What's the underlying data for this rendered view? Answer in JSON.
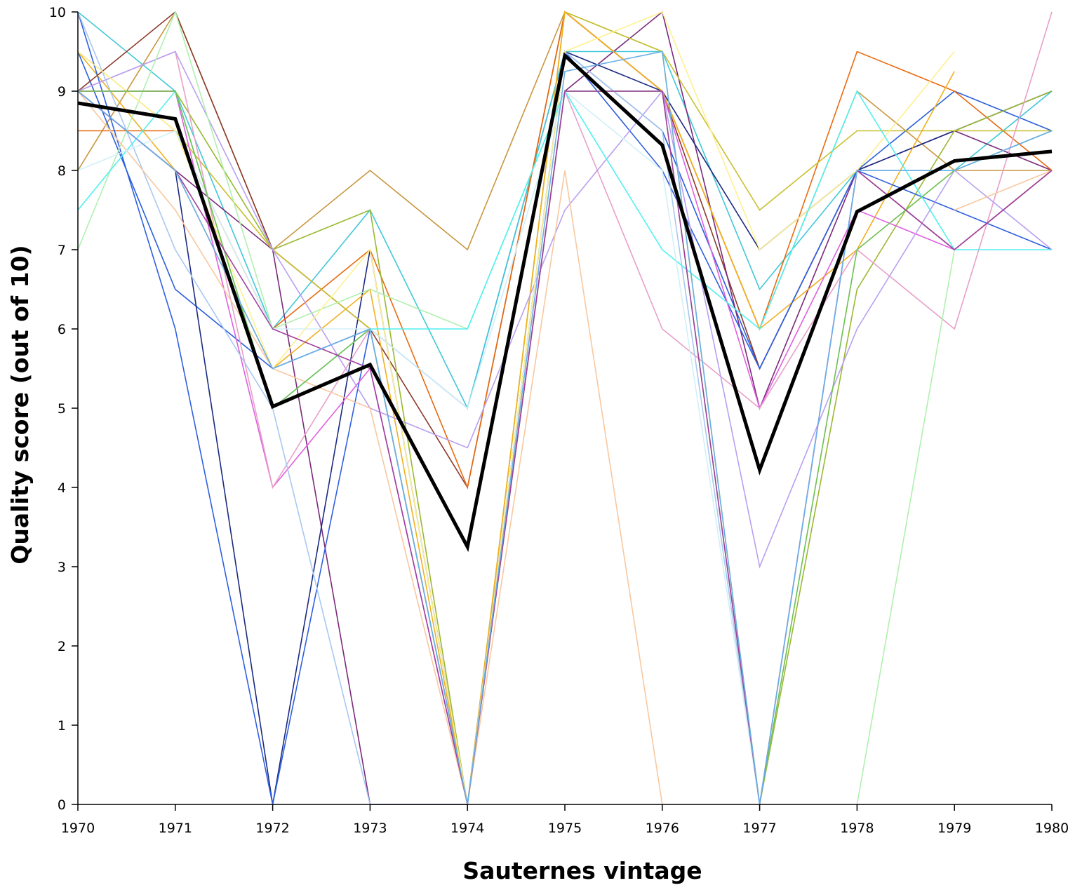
{
  "chart_data": {
    "type": "line",
    "xlabel": "Sauternes vintage",
    "ylabel": "Quality score (out of 10)",
    "xlim": [
      1970,
      1980
    ],
    "ylim": [
      0,
      10
    ],
    "x": [
      1970,
      1971,
      1972,
      1973,
      1974,
      1975,
      1976,
      1977,
      1978,
      1979,
      1980
    ],
    "x_tick_labels": [
      "1970",
      "1971",
      "1972",
      "1973",
      "1974",
      "1975",
      "1976",
      "1977",
      "1978",
      "1979",
      "1980"
    ],
    "y_tick_labels": [
      "0",
      "1",
      "2",
      "3",
      "4",
      "5",
      "6",
      "7",
      "8",
      "9",
      "10"
    ],
    "grid": false,
    "legend": "none",
    "average_series": {
      "color": "#000000",
      "values": [
        8.85,
        8.65,
        5.02,
        5.55,
        3.25,
        9.45,
        8.32,
        4.22,
        7.48,
        8.12,
        8.24
      ]
    },
    "series": [
      {
        "color": "#c8963e",
        "values": [
          8.0,
          10.0,
          7.0,
          8.0,
          7.0,
          10.0,
          9.0,
          6.0,
          9.0,
          8.0,
          8.0
        ]
      },
      {
        "color": "#2b5fd9",
        "values": [
          9.5,
          6.5,
          5.5,
          6.0,
          5.0,
          9.5,
          8.5,
          5.5,
          8.0,
          9.0,
          8.5
        ]
      },
      {
        "color": "#40c8d8",
        "values": [
          10.0,
          9.0,
          6.0,
          7.5,
          5.0,
          9.5,
          9.5,
          6.5,
          8.0,
          8.0,
          9.0
        ]
      },
      {
        "color": "#8b3a2a",
        "values": [
          9.0,
          10.0,
          7.0,
          6.0,
          4.0,
          10.0,
          9.0,
          5.5,
          8.0,
          7.0,
          8.0
        ]
      },
      {
        "color": "#7a2a7a",
        "values": [
          9.0,
          8.0,
          7.0,
          0.0,
          0.0,
          9.0,
          10.0,
          5.0,
          8.0,
          8.5,
          8.0
        ]
      },
      {
        "color": "#1a2a80",
        "values": [
          9.0,
          8.0,
          0.0,
          7.0,
          0.0,
          9.5,
          9.0,
          7.0,
          8.0,
          8.5,
          9.0
        ]
      },
      {
        "color": "#e86a10",
        "values": [
          8.5,
          8.5,
          6.0,
          7.0,
          4.0,
          10.0,
          9.0,
          6.0,
          9.5,
          9.0,
          8.0
        ]
      },
      {
        "color": "#9ab830",
        "values": [
          9.0,
          9.0,
          7.0,
          7.5,
          0.0,
          10.0,
          9.5,
          0.0,
          6.5,
          8.5,
          9.0
        ]
      },
      {
        "color": "#c8c030",
        "values": [
          9.5,
          8.5,
          7.0,
          6.0,
          0.0,
          10.0,
          9.5,
          7.5,
          8.5,
          8.5,
          8.5
        ]
      },
      {
        "color": "#f0b020",
        "values": [
          9.5,
          8.0,
          5.5,
          6.5,
          0.0,
          10.0,
          9.0,
          6.0,
          7.0,
          9.25,
          null
        ]
      },
      {
        "color": "#3060e0",
        "values": [
          10.0,
          6.0,
          0.0,
          6.0,
          0.0,
          9.5,
          8.0,
          5.5,
          8.0,
          7.5,
          7.0
        ]
      },
      {
        "color": "#e060e0",
        "values": [
          9.0,
          9.0,
          4.0,
          5.5,
          0.0,
          9.0,
          9.0,
          5.0,
          7.5,
          7.0,
          null
        ]
      },
      {
        "color": "#e8a0c8",
        "values": [
          9.0,
          9.5,
          4.0,
          6.0,
          0.0,
          9.0,
          6.0,
          5.0,
          7.0,
          6.0,
          10.0
        ]
      },
      {
        "color": "#b8a0f0",
        "values": [
          9.0,
          9.5,
          7.0,
          5.0,
          4.5,
          7.5,
          9.0,
          3.0,
          6.0,
          8.0,
          7.0
        ]
      },
      {
        "color": "#a8c8f0",
        "values": [
          10.0,
          7.0,
          5.0,
          0.0,
          0.0,
          9.5,
          8.5,
          0.0,
          8.0,
          8.0,
          8.5
        ]
      },
      {
        "color": "#b0f0b0",
        "values": [
          7.0,
          10.0,
          6.0,
          6.5,
          6.0,
          9.0,
          9.0,
          null,
          0.0,
          7.0,
          null
        ]
      },
      {
        "color": "#f8c8a0",
        "values": [
          9.0,
          7.5,
          5.5,
          5.0,
          0.0,
          8.0,
          0.0,
          null,
          null,
          7.5,
          8.0
        ]
      },
      {
        "color": "#fff090",
        "values": [
          9.5,
          8.5,
          5.5,
          7.0,
          0.0,
          9.5,
          10.0,
          7.0,
          8.0,
          9.5,
          null
        ]
      },
      {
        "color": "#50f0f0",
        "values": [
          7.5,
          9.0,
          5.0,
          6.0,
          6.0,
          9.0,
          7.0,
          6.0,
          9.0,
          7.0,
          7.0
        ]
      },
      {
        "color": "#d0f0f8",
        "values": [
          8.0,
          8.5,
          6.0,
          6.0,
          5.0,
          9.0,
          8.0,
          0.0,
          7.0,
          8.0,
          8.5
        ]
      },
      {
        "color": "#70c050",
        "values": [
          9.0,
          9.0,
          5.0,
          6.0,
          0.0,
          9.0,
          9.0,
          0.0,
          7.0,
          8.0,
          8.5
        ]
      },
      {
        "color": "#a040a0",
        "values": [
          9.0,
          8.0,
          6.0,
          5.5,
          0.0,
          9.0,
          9.0,
          0.0,
          8.0,
          7.0,
          8.0
        ]
      },
      {
        "color": "#6ab0e8",
        "values": [
          9.0,
          8.0,
          5.5,
          6.0,
          0.0,
          9.25,
          9.5,
          0.0,
          8.0,
          8.0,
          8.5
        ]
      }
    ]
  }
}
